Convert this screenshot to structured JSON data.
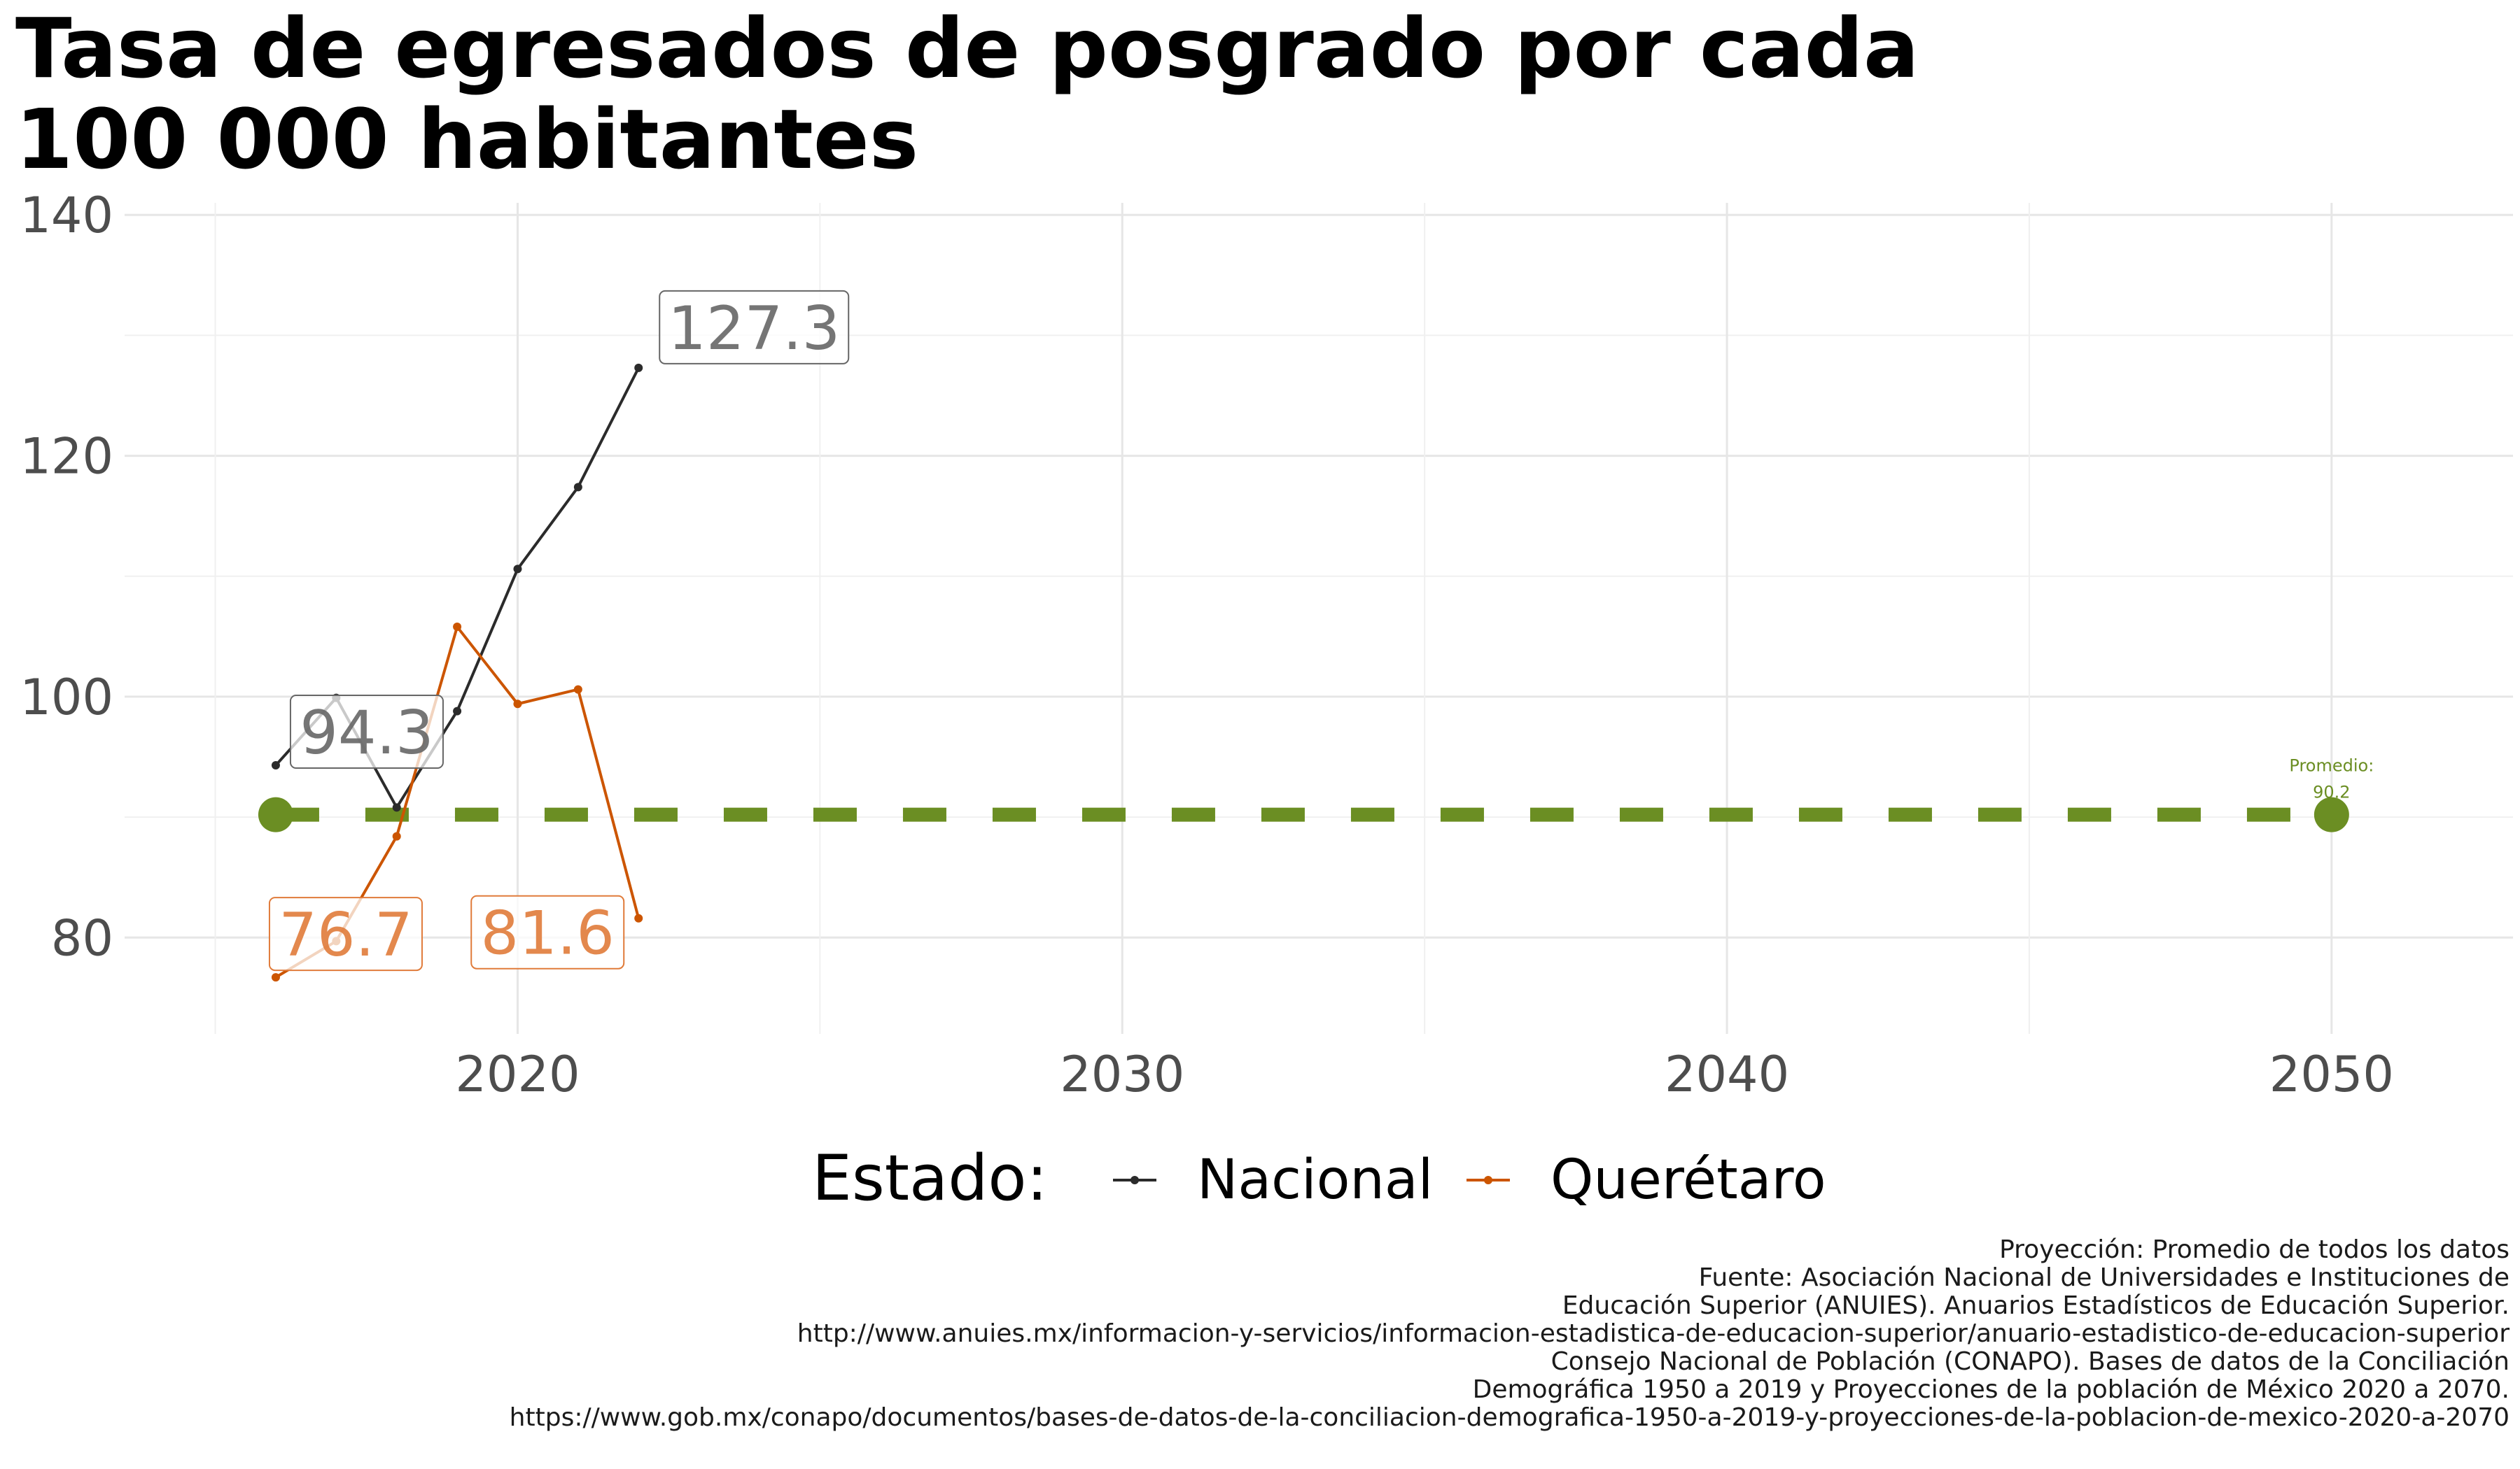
{
  "title_lines": [
    "Tasa de egresados de posgrado por cada",
    "100 000 habitantes"
  ],
  "chart_data": {
    "type": "line",
    "title": "Tasa de egresados de posgrado por cada 100 000 habitantes",
    "xlabel": "",
    "ylabel": "",
    "xlim": [
      2013.5,
      2053
    ],
    "ylim": [
      72,
      141
    ],
    "x_ticks": [
      2020,
      2030,
      2040,
      2050
    ],
    "y_ticks": [
      80,
      100,
      120,
      140
    ],
    "grid": true,
    "legend": {
      "title": "Estado:",
      "position": "bottom"
    },
    "series": [
      {
        "name": "Nacional",
        "color": "#2b2b2b",
        "x": [
          2016,
          2017,
          2018,
          2019,
          2020,
          2021,
          2022
        ],
        "y": [
          94.3,
          99.9,
          90.8,
          98.8,
          110.6,
          117.4,
          127.3
        ]
      },
      {
        "name": "Querétaro",
        "color": "#cc5500",
        "x": [
          2016,
          2017,
          2018,
          2019,
          2020,
          2021,
          2022
        ],
        "y": [
          76.7,
          79.7,
          88.4,
          105.8,
          99.4,
          100.6,
          81.6
        ]
      }
    ],
    "data_labels": [
      {
        "text": "127.3",
        "x": 2022,
        "y": 127.3,
        "series": "Nacional"
      },
      {
        "text": "94.3",
        "x": 2016,
        "y": 94.3,
        "series": "Nacional"
      },
      {
        "text": "76.7",
        "x": 2016,
        "y": 76.7,
        "series": "Querétaro"
      },
      {
        "text": "81.6",
        "x": 2022,
        "y": 81.6,
        "series": "Querétaro"
      }
    ],
    "average_line": {
      "value": 90.2,
      "x_start": 2016,
      "x_end": 2050,
      "color": "#6b8e23",
      "label_line1": "Promedio:",
      "label_line2": "90.2"
    }
  },
  "caption_lines": [
    "Proyección: Promedio de todos los datos",
    "Fuente: Asociación Nacional de Universidades e Instituciones de",
    "Educación Superior (ANUIES). Anuarios Estadísticos de Educación Superior.",
    "http://www.anuies.mx/informacion-y-servicios/informacion-estadistica-de-educacion-superior/anuario-estadistico-de-educacion-superior",
    "Consejo Nacional de Población (CONAPO). Bases de datos de la Conciliación",
    "Demográfica 1950 a 2019 y Proyecciones de la población de México 2020 a 2070.",
    "https://www.gob.mx/conapo/documentos/bases-de-datos-de-la-conciliacion-demografica-1950-a-2019-y-proyecciones-de-la-poblacion-de-mexico-2020-a-2070"
  ]
}
